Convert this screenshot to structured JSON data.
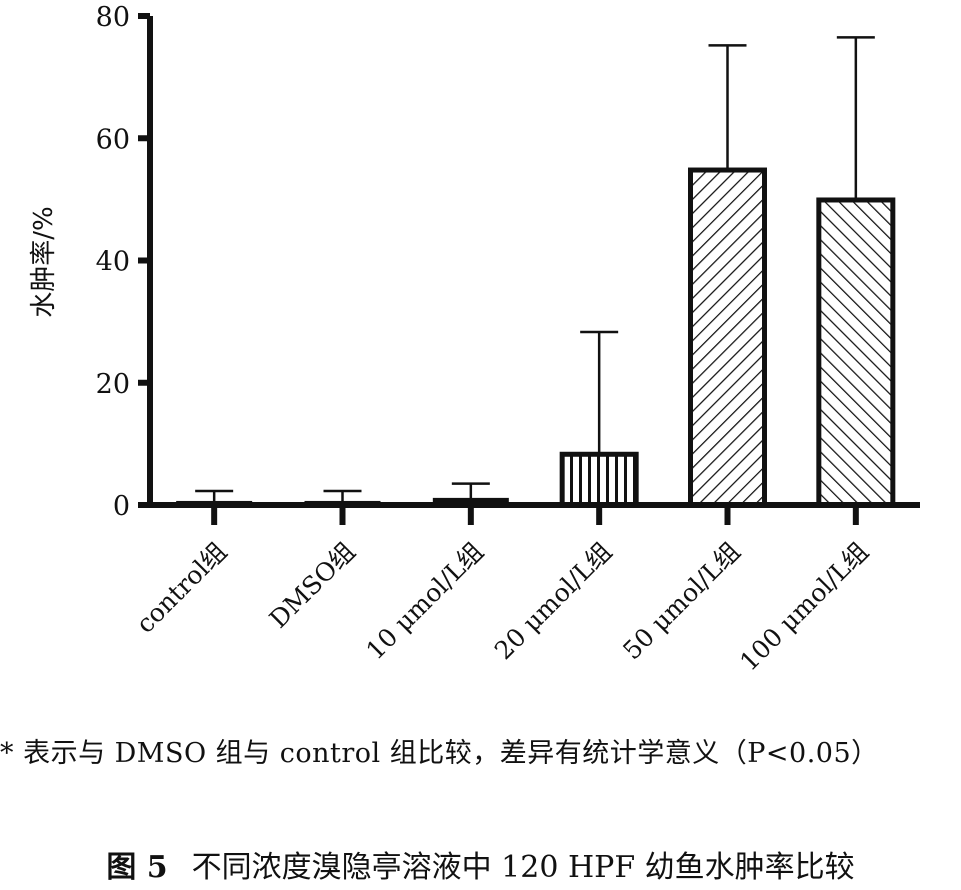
{
  "chart_data": {
    "type": "bar",
    "ylabel": "水肿率/%",
    "xlabel": "",
    "ylim": [
      0,
      80
    ],
    "yticks": [
      0,
      20,
      40,
      60,
      80
    ],
    "categories": [
      "control组",
      "DMSO组",
      "10 μmol/L组",
      "20 μmol/L组",
      "50 μmol/L组",
      "100 μmol/L组"
    ],
    "values": [
      0.5,
      0.5,
      1.0,
      8.3,
      54.8,
      49.9
    ],
    "error_upper": [
      2.3,
      2.3,
      3.5,
      28.3,
      75.2,
      76.5
    ],
    "fill_patterns": [
      "solid",
      "solid",
      "solid",
      "vertical",
      "diagonal-right",
      "diagonal-left"
    ],
    "grid": false,
    "bar_color": "#111111"
  },
  "note": "* 表示与 DMSO 组与 control 组比较，差异有统计学意义（P<0.05）",
  "caption": {
    "figure": "图 5",
    "title": "不同浓度溴隐亭溶液中 120 HPF 幼鱼水肿率比较"
  }
}
